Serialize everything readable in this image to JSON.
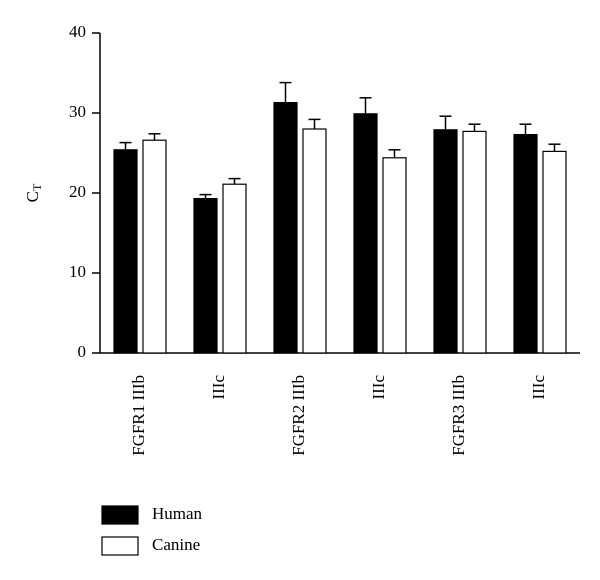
{
  "chart_data": {
    "type": "bar",
    "y_label": "C",
    "y_label_subscript": "T",
    "categories": [
      "FGFR1 IIIb",
      "IIIc",
      "FGFR2 IIIb",
      "IIIc",
      "FGFR3 IIIb",
      "IIIc"
    ],
    "series": [
      {
        "name": "Human",
        "color": "#000000",
        "values": [
          25.4,
          19.3,
          31.3,
          29.9,
          27.9,
          27.3
        ],
        "errors": [
          0.9,
          0.5,
          2.5,
          2.0,
          1.7,
          1.3
        ]
      },
      {
        "name": "Canine",
        "color": "#ffffff",
        "values": [
          26.6,
          21.1,
          28.0,
          24.4,
          27.7,
          25.2
        ],
        "errors": [
          0.8,
          0.7,
          1.2,
          1.0,
          0.9,
          0.9
        ]
      }
    ],
    "ylim": [
      0,
      40
    ],
    "yticks": [
      0,
      10,
      20,
      30,
      40
    ],
    "grid": false
  }
}
